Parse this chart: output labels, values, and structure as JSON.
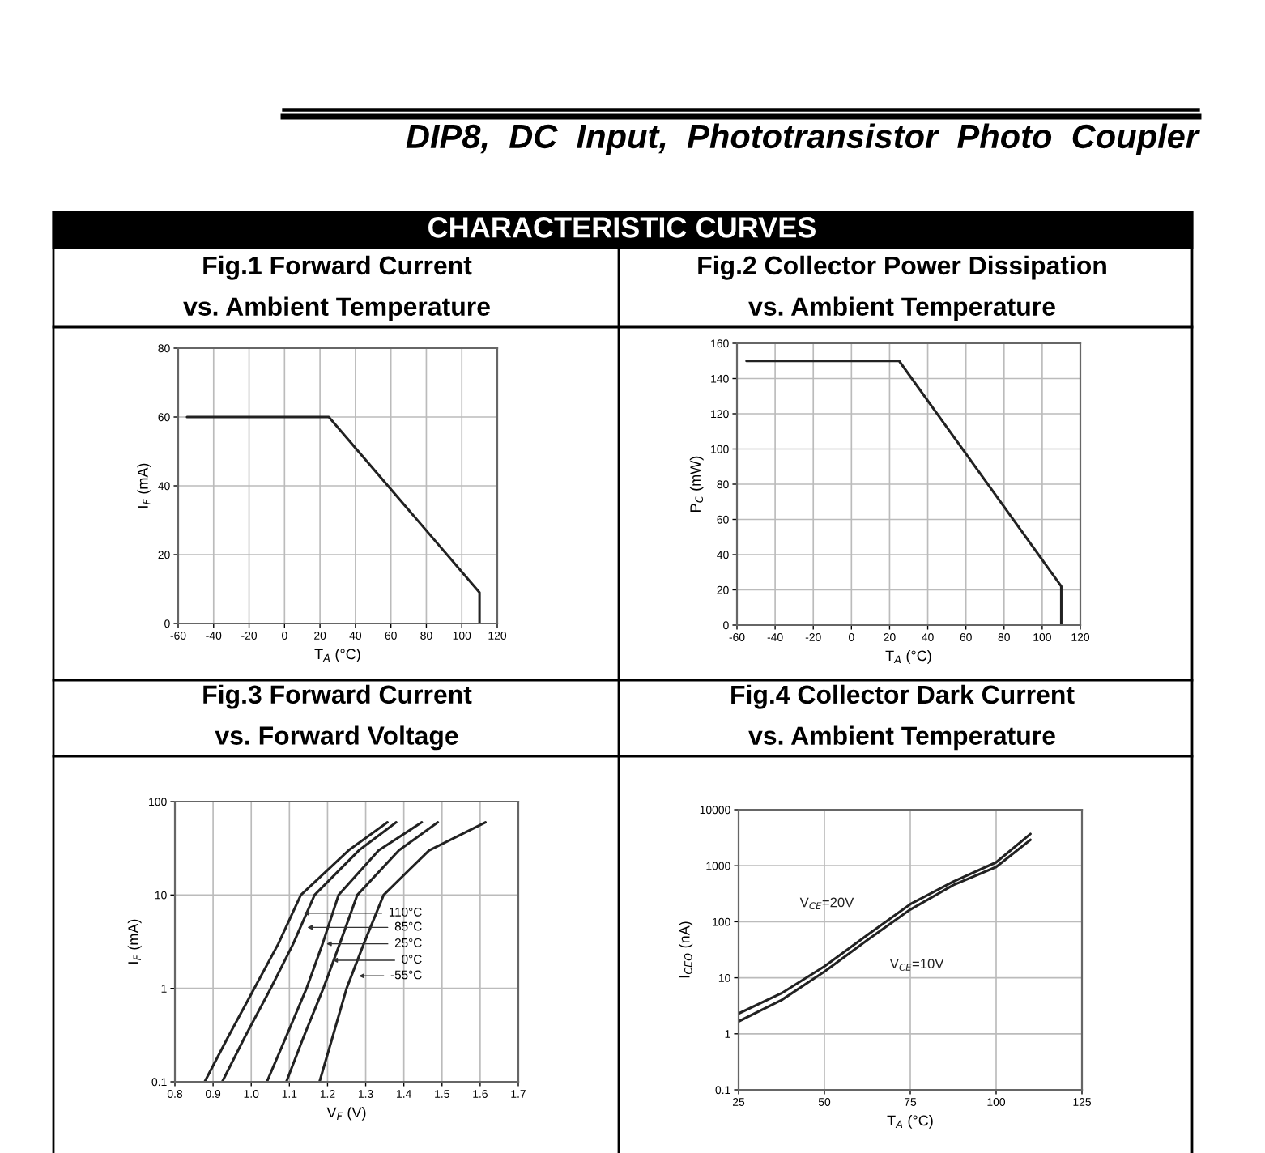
{
  "chart_data": [
    {
      "type": "line",
      "title": "Fig.1 Forward Current\nvs. Ambient Temperature",
      "xlabel": "T$_{A}$ (°C)",
      "ylabel": "I$_{F}$ (mA)",
      "annotations": [
        "DIP8,  DC  Input,  Phototransistor  Photo  Coupler",
        "CHARACTERISTIC CURVES"
      ],
      "series": [
        {
          "color": "#222222",
          "x": [
            -55,
            25,
            110,
            110
          ],
          "values": [
            60,
            60,
            9,
            0
          ]
        }
      ],
      "xlim": [
        -60,
        120
      ],
      "xticks": [
        -60,
        -40,
        -20,
        0,
        20,
        40,
        60,
        80,
        100,
        120
      ],
      "ylim": [
        0,
        80
      ],
      "yticks": [
        0,
        20,
        40,
        60,
        80
      ],
      "grid": true,
      "line_style": "solid",
      "marker": "none"
    },
    {
      "type": "line",
      "title": "Fig.2 Collector Power Dissipation\nvs. Ambient Temperature",
      "xlabel": "T$_{A}$ (°C)",
      "ylabel": "P$_{C}$ (mW)",
      "series": [
        {
          "color": "#222222",
          "x": [
            -55,
            25,
            110,
            110
          ],
          "values": [
            150,
            150,
            22,
            0
          ]
        }
      ],
      "xlim": [
        -60,
        120
      ],
      "xticks": [
        -60,
        -40,
        -20,
        0,
        20,
        40,
        60,
        80,
        100,
        120
      ],
      "ylim": [
        0,
        160
      ],
      "yticks": [
        0,
        20,
        40,
        60,
        80,
        100,
        120,
        140,
        160
      ],
      "grid": true,
      "line_style": "solid",
      "marker": "none"
    },
    {
      "type": "line",
      "title": "Fig.3 Forward Current\nvs. Forward Voltage",
      "xlabel": "V$_{F}$ (V)",
      "ylabel": "I$_{F}$ (mA)",
      "log": true,
      "annotations": [
        {
          "text": "110°C",
          "x": 1.137,
          "y": 6.4
        },
        {
          "text": "85°C",
          "x": 1.147,
          "y": 4.5
        },
        {
          "text": "25°C",
          "x": 1.197,
          "y": 3
        },
        {
          "text": "0°C",
          "x": 1.213,
          "y": 2
        },
        {
          "text": "-55°C",
          "x": 1.282,
          "y": 1.36
        }
      ],
      "series": [
        {
          "color": "#222222",
          "x": [
            0.878,
            0.939,
            1.008,
            1.071,
            1.13,
            1.255,
            1.357
          ],
          "values": [
            0.1,
            0.3,
            1,
            3,
            10,
            30,
            60
          ]
        },
        {
          "color": "#222222",
          "x": [
            0.924,
            0.983,
            1.051,
            1.11,
            1.166,
            1.282,
            1.38
          ],
          "values": [
            0.1,
            0.3,
            1,
            3,
            10,
            30,
            60
          ]
        },
        {
          "color": "#222222",
          "x": [
            1.041,
            1.091,
            1.145,
            1.187,
            1.229,
            1.334,
            1.447
          ],
          "values": [
            0.1,
            0.3,
            1,
            3,
            10,
            30,
            60
          ]
        },
        {
          "color": "#222222",
          "x": [
            1.092,
            1.137,
            1.189,
            1.232,
            1.278,
            1.387,
            1.489
          ],
          "values": [
            0.1,
            0.3,
            1,
            3,
            10,
            30,
            60
          ]
        },
        {
          "color": "#222222",
          "x": [
            1.179,
            1.213,
            1.25,
            1.295,
            1.347,
            1.466,
            1.614
          ],
          "values": [
            0.1,
            0.3,
            1,
            3,
            10,
            30,
            60
          ]
        }
      ],
      "xlim": [
        0.8,
        1.7
      ],
      "xticks": [
        0.8,
        0.9,
        {
          "value": 1.0,
          "label": "1.0"
        },
        1.1,
        1.2,
        1.3,
        1.4,
        1.5,
        1.6,
        1.7
      ],
      "ylim": [
        0.1,
        100
      ],
      "yticks": [
        0.1,
        1,
        10,
        100
      ],
      "grid": true,
      "line_style": "solid",
      "marker": "none"
    },
    {
      "type": "line",
      "title": "Fig.4 Collector Dark Current\nvs. Ambient Temperature",
      "xlabel": "T$_{A}$ (°C)",
      "ylabel": "I$_{CEO}$ (nA)",
      "log": true,
      "x": [
        25,
        37.5,
        50,
        62.5,
        75,
        87.5,
        100,
        110
      ],
      "series": [
        {
          "name": "V$_{CE}$=20V",
          "color": "#222222",
          "values": [
            2.3,
            5.3,
            16,
            58,
            206,
            520,
            1150,
            3700
          ]
        },
        {
          "name": "V$_{CE}$=10V",
          "color": "#222222",
          "values": [
            1.66,
            4.0,
            12.9,
            47,
            165,
            450,
            950,
            2900
          ]
        }
      ],
      "xlim": [
        25,
        125
      ],
      "xticks": [
        25,
        50,
        75,
        100,
        125
      ],
      "ylim": [
        0.1,
        10000
      ],
      "yticks": [
        0.1,
        1,
        10,
        100,
        1000,
        10000
      ],
      "grid": true,
      "line_style": "solid",
      "marker": "none"
    }
  ]
}
